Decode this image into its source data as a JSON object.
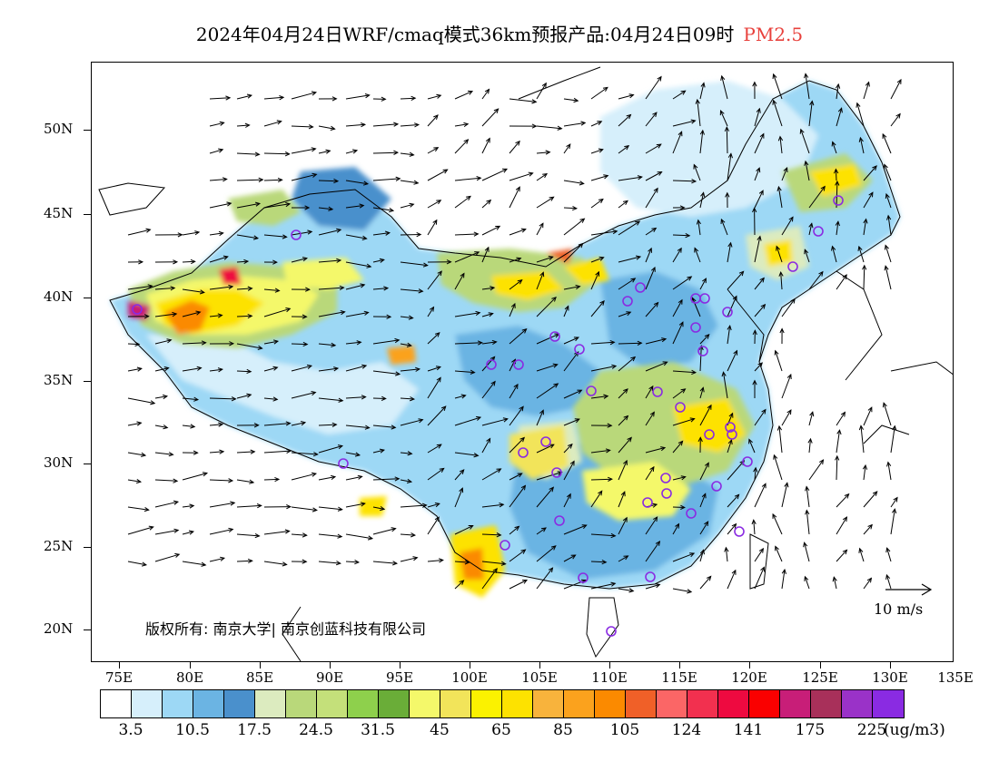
{
  "title": {
    "main": "2024年04月24日WRF/cmaq模式36km预报产品:04月24日09时",
    "pollutant": "PM2.5",
    "pollutant_color": "#e8413c"
  },
  "axes": {
    "lat_labels": [
      "50N",
      "45N",
      "40N",
      "35N",
      "30N",
      "25N",
      "20N"
    ],
    "lon_labels": [
      "75E",
      "80E",
      "85E",
      "90E",
      "95E",
      "100E",
      "105E",
      "110E",
      "115E",
      "120E",
      "125E",
      "130E",
      "135E"
    ]
  },
  "colorbar": {
    "colors": [
      "#ffffff",
      "#d6effb",
      "#9dd8f5",
      "#6bb4e3",
      "#4a90cc",
      "#dcebbf",
      "#b9d87a",
      "#c4e07a",
      "#8ed04c",
      "#6aad38",
      "#f4f86a",
      "#f2e45a",
      "#fbf200",
      "#fde200",
      "#f8b33c",
      "#fba21d",
      "#fb8a00",
      "#f06028",
      "#fb6666",
      "#f2304f",
      "#ee0a40",
      "#fa0000",
      "#c81e78",
      "#a8305a",
      "#9a32c8",
      "#8a2be2"
    ],
    "labels": [
      "3.5",
      "10.5",
      "17.5",
      "24.5",
      "31.5",
      "45",
      "65",
      "85",
      "105",
      "124",
      "141",
      "175",
      "225"
    ],
    "unit": "(ug/m3)"
  },
  "legend": {
    "copyright": "版权所有: 南京大学| 南京创蓝科技有限公司",
    "wind_scale": "10 m/s"
  },
  "city_markers_count": 38
}
